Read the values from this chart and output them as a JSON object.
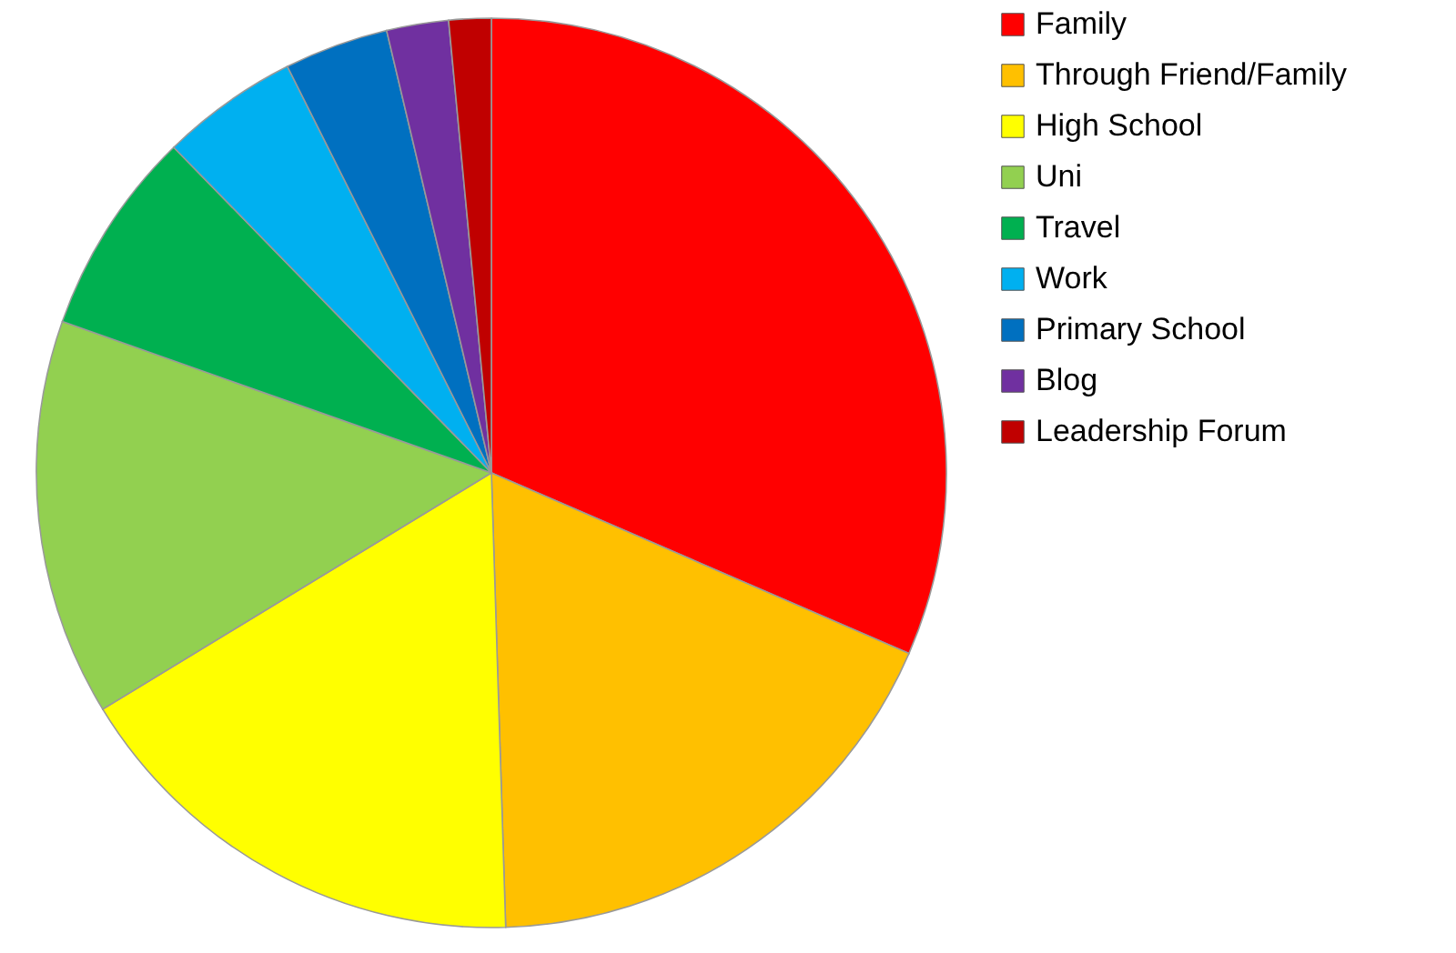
{
  "chart_data": {
    "type": "pie",
    "categories": [
      "Family",
      "Through Friend/Family",
      "High School",
      "Uni",
      "Travel",
      "Work",
      "Primary School",
      "Blog",
      "Leadership Forum"
    ],
    "values": [
      31.5,
      18,
      16.8,
      14.1,
      7.3,
      4.9,
      3.7,
      2.2,
      1.5
    ],
    "colors": [
      "#ff0000",
      "#ffc000",
      "#ffff00",
      "#92d050",
      "#00b050",
      "#00b0f0",
      "#0070c0",
      "#7030a0",
      "#c00000"
    ],
    "legend": "right"
  }
}
